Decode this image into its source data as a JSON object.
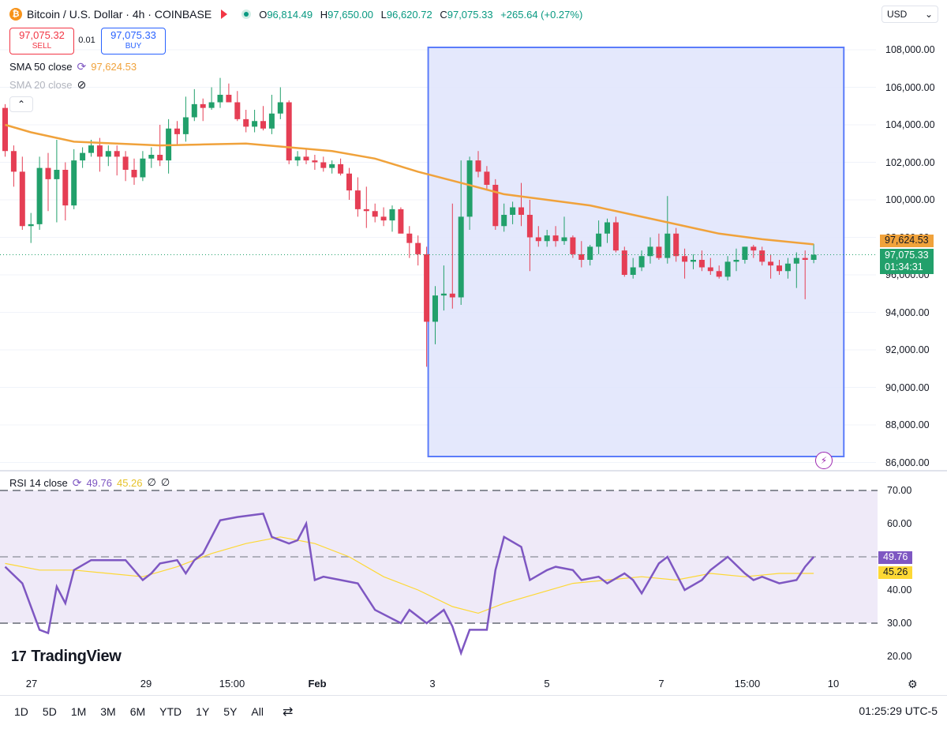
{
  "header": {
    "symbol_title": "Bitcoin / U.S. Dollar · 4h · COINBASE",
    "coin_glyph": "₿",
    "ohlc": {
      "o_key": "O",
      "o": "96,814.49",
      "h_key": "H",
      "h": "97,650.00",
      "l_key": "L",
      "l": "96,620.72",
      "c_key": "C",
      "c": "97,075.33",
      "change": "+265.64 (+0.27%)"
    }
  },
  "trade": {
    "sell_price": "97,075.32",
    "sell_label": "SELL",
    "spread": "0.01",
    "buy_price": "97,075.33",
    "buy_label": "BUY"
  },
  "currency": {
    "label": "USD",
    "chevron": "⌄"
  },
  "indicators": {
    "sma50": {
      "label": "SMA 50 close",
      "value": "97,624.53",
      "color": "#f0a23b"
    },
    "sma20": {
      "label": "SMA 20 close"
    },
    "rsi": {
      "label": "RSI 14 close",
      "value": "49.76",
      "ma_value": "45.26",
      "extra1": "∅",
      "extra2": "∅",
      "color": "#7e57c2",
      "ma_color": "#fdd835"
    }
  },
  "price_axis": {
    "ticks": [
      "108,000.00",
      "106,000.00",
      "104,000.00",
      "102,000.00",
      "100,000.00",
      "98,000.00",
      "96,000.00",
      "94,000.00",
      "92,000.00",
      "90,000.00",
      "88,000.00",
      "86,000.00"
    ]
  },
  "rsi_axis": {
    "ticks": [
      "70.00",
      "60.00",
      "50.00",
      "40.00",
      "30.00",
      "20.00"
    ]
  },
  "labels": {
    "sma_price": "97,624.53",
    "last_price": "97,075.33",
    "countdown": "01:34:31",
    "rsi": "49.76",
    "rsi_ma": "45.26"
  },
  "x_axis": {
    "ticks": [
      "27",
      "29",
      "15:00",
      "Feb",
      "3",
      "5",
      "7",
      "15:00",
      "10"
    ]
  },
  "timeframes": [
    "1D",
    "5D",
    "1M",
    "3M",
    "6M",
    "YTD",
    "1Y",
    "5Y",
    "All"
  ],
  "clock": "01:25:29 UTC-5",
  "brand": {
    "name": "TradingView",
    "mark": "17"
  },
  "colors": {
    "up": "#22a06b",
    "down": "#e53e54",
    "selection_fill": "#dfe4fc",
    "selection_border": "#5b7cfa",
    "sma50": "#f0a23b",
    "rsi": "#7e57c2"
  },
  "chart_data": [
    {
      "type": "candlestick",
      "title": "Bitcoin / U.S. Dollar · 4h · COINBASE",
      "x_start": "Jan 26",
      "x_end": "Feb 9",
      "ylim": [
        86000,
        108000
      ],
      "candles": [
        [
          104900,
          105100,
          102300,
          102600
        ],
        [
          102600,
          102900,
          100700,
          101500
        ],
        [
          101500,
          102300,
          98400,
          98600
        ],
        [
          98600,
          99300,
          97700,
          98700
        ],
        [
          98700,
          102300,
          98400,
          101700
        ],
        [
          101700,
          102500,
          99400,
          101100
        ],
        [
          101100,
          103200,
          98800,
          101600
        ],
        [
          101600,
          102000,
          98900,
          99700
        ],
        [
          99700,
          102700,
          99500,
          102100
        ],
        [
          102100,
          102800,
          101700,
          102500
        ],
        [
          102500,
          103200,
          102300,
          102900
        ],
        [
          102900,
          103300,
          101500,
          102300
        ],
        [
          102300,
          102900,
          101800,
          102600
        ],
        [
          102600,
          102900,
          101300,
          102300
        ],
        [
          102300,
          102600,
          101000,
          101600
        ],
        [
          101600,
          102200,
          100800,
          101200
        ],
        [
          101200,
          102600,
          101000,
          102200
        ],
        [
          102200,
          102800,
          101700,
          102400
        ],
        [
          102400,
          104000,
          101800,
          102100
        ],
        [
          102100,
          104300,
          101400,
          103800
        ],
        [
          103800,
          104200,
          102900,
          103500
        ],
        [
          103500,
          105500,
          103100,
          104400
        ],
        [
          104400,
          105900,
          104200,
          105100
        ],
        [
          105100,
          105400,
          104200,
          104900
        ],
        [
          104900,
          106000,
          104800,
          105200
        ],
        [
          105200,
          106500,
          104900,
          105600
        ],
        [
          105600,
          106200,
          105200,
          105200
        ],
        [
          105200,
          105800,
          104200,
          104300
        ],
        [
          104300,
          104800,
          103600,
          103900
        ],
        [
          103900,
          104800,
          103600,
          104200
        ],
        [
          104200,
          105000,
          103700,
          103800
        ],
        [
          103800,
          105600,
          103500,
          104600
        ],
        [
          104600,
          106000,
          104300,
          105200
        ],
        [
          105200,
          105300,
          101900,
          102100
        ],
        [
          102100,
          102600,
          101800,
          102300
        ],
        [
          102300,
          102700,
          101900,
          102100
        ],
        [
          102100,
          102400,
          101600,
          102000
        ],
        [
          102000,
          102300,
          101500,
          101700
        ],
        [
          101700,
          102100,
          101400,
          101900
        ],
        [
          101900,
          102200,
          101300,
          101400
        ],
        [
          101400,
          101700,
          100000,
          100500
        ],
        [
          100500,
          101200,
          99100,
          99500
        ],
        [
          99500,
          100700,
          98500,
          99400
        ],
        [
          99400,
          99800,
          98800,
          99100
        ],
        [
          99100,
          99600,
          98600,
          98900
        ],
        [
          98900,
          99700,
          98300,
          99500
        ],
        [
          99500,
          99600,
          98300,
          98200
        ],
        [
          98200,
          98600,
          96900,
          97700
        ],
        [
          97700,
          98100,
          96500,
          97100
        ],
        [
          97100,
          97500,
          91100,
          93500
        ],
        [
          93500,
          95400,
          92300,
          94900
        ],
        [
          94900,
          96500,
          94100,
          95000
        ],
        [
          95000,
          99800,
          94200,
          94800
        ],
        [
          94800,
          102100,
          94400,
          99100
        ],
        [
          99100,
          102300,
          98400,
          102100
        ],
        [
          102100,
          102600,
          101200,
          101500
        ],
        [
          101500,
          101800,
          100500,
          100800
        ],
        [
          100800,
          101100,
          98400,
          98600
        ],
        [
          98600,
          99800,
          98300,
          99200
        ],
        [
          99200,
          99900,
          98700,
          99600
        ],
        [
          99600,
          100900,
          98600,
          99200
        ],
        [
          99200,
          100000,
          96200,
          98000
        ],
        [
          98000,
          98600,
          97500,
          97800
        ],
        [
          97800,
          98400,
          97500,
          98100
        ],
        [
          98100,
          98600,
          97500,
          97800
        ],
        [
          97800,
          99100,
          97600,
          98000
        ],
        [
          98000,
          98100,
          96900,
          97100
        ],
        [
          97100,
          97800,
          96400,
          96800
        ],
        [
          96800,
          97600,
          96500,
          97500
        ],
        [
          97500,
          98900,
          97100,
          98200
        ],
        [
          98200,
          99000,
          97700,
          98800
        ],
        [
          98800,
          99100,
          97200,
          97300
        ],
        [
          97300,
          97500,
          95900,
          96000
        ],
        [
          96000,
          96900,
          95800,
          96400
        ],
        [
          96400,
          97300,
          96200,
          97000
        ],
        [
          97000,
          98000,
          96600,
          97500
        ],
        [
          97500,
          98200,
          96800,
          96900
        ],
        [
          96900,
          100200,
          96600,
          98200
        ],
        [
          98200,
          98500,
          96700,
          97000
        ],
        [
          97000,
          97400,
          95800,
          96700
        ],
        [
          96700,
          97100,
          96300,
          96800
        ],
        [
          96800,
          97300,
          96200,
          96400
        ],
        [
          96400,
          96900,
          96000,
          96200
        ],
        [
          96200,
          96500,
          95800,
          95900
        ],
        [
          95900,
          97000,
          95700,
          96700
        ],
        [
          96700,
          97400,
          96200,
          96800
        ],
        [
          96800,
          97500,
          96600,
          97500
        ],
        [
          97500,
          97600,
          96900,
          97300
        ],
        [
          97300,
          97500,
          96500,
          96700
        ],
        [
          96700,
          97100,
          95800,
          96500
        ],
        [
          96500,
          96800,
          96000,
          96200
        ],
        [
          96200,
          96900,
          95800,
          96600
        ],
        [
          96600,
          97200,
          95300,
          96900
        ],
        [
          96900,
          97300,
          94700,
          96800
        ],
        [
          96800,
          97650,
          96620,
          97075
        ]
      ],
      "series": [
        {
          "name": "SMA 50 close",
          "x": [
            0,
            3,
            8,
            13,
            18,
            23,
            28,
            33,
            38,
            43,
            48,
            53,
            58,
            63,
            68,
            73,
            78,
            83,
            88,
            94
          ],
          "values": [
            104000,
            103600,
            103100,
            103000,
            102900,
            102950,
            103000,
            102800,
            102600,
            102200,
            101500,
            100900,
            100300,
            100000,
            99700,
            99200,
            98700,
            98200,
            97900,
            97624
          ]
        }
      ]
    },
    {
      "type": "line",
      "title": "RSI 14 close",
      "ylim": [
        15,
        73
      ],
      "bands": [
        30,
        50,
        70
      ],
      "series": [
        {
          "name": "RSI 14 close",
          "x": [
            0,
            2,
            4,
            5,
            6,
            7,
            8,
            10,
            12,
            14,
            16,
            17,
            18,
            20,
            21,
            22,
            23,
            25,
            27,
            30,
            31,
            33,
            34,
            35,
            36,
            37,
            39,
            41,
            43,
            46,
            47,
            49,
            51,
            52,
            53,
            54,
            56,
            57,
            58,
            60,
            61,
            63,
            64,
            66,
            67,
            69,
            70,
            72,
            73,
            74,
            76,
            77,
            79,
            81,
            82,
            84,
            86,
            87,
            88,
            89,
            90,
            92,
            93,
            94
          ],
          "values": [
            47,
            42,
            28,
            27,
            41,
            36,
            46,
            49,
            49,
            49,
            43,
            45,
            48,
            49,
            45,
            49,
            51,
            61,
            62,
            63,
            56,
            54,
            55,
            60,
            43,
            44,
            43,
            42,
            34,
            30,
            34,
            30,
            34,
            29,
            21,
            28,
            28,
            46,
            56,
            53,
            43,
            46,
            47,
            46,
            43,
            44,
            42,
            45,
            43,
            39,
            48,
            50,
            40,
            43,
            46,
            50,
            45,
            43,
            44,
            43,
            42,
            43,
            47,
            50
          ]
        },
        {
          "name": "RSI MA",
          "x": [
            0,
            4,
            8,
            12,
            16,
            20,
            24,
            28,
            32,
            36,
            40,
            44,
            48,
            52,
            55,
            58,
            62,
            66,
            70,
            74,
            78,
            82,
            86,
            90,
            94
          ],
          "values": [
            48,
            46,
            46,
            45,
            44,
            47,
            51,
            54,
            56,
            54,
            50,
            44,
            40,
            35,
            33,
            36,
            39,
            42,
            43,
            44,
            43,
            45,
            44,
            45,
            45
          ]
        }
      ]
    }
  ]
}
